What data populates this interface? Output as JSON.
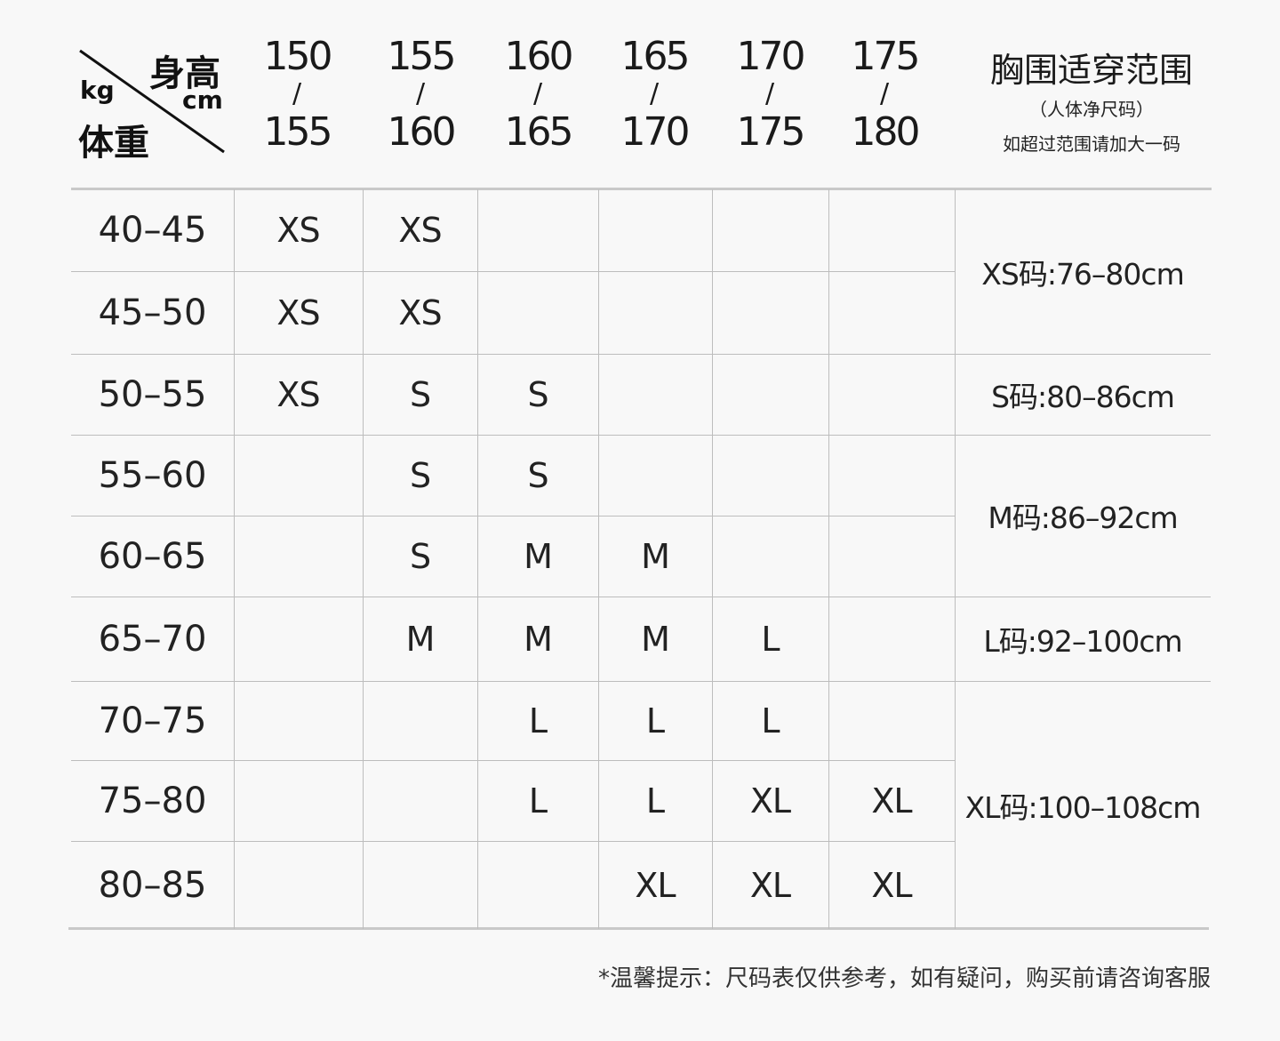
{
  "header": {
    "height_label": "身高",
    "height_unit": "cm",
    "weight_unit": "kg",
    "weight_label": "体重",
    "height_ranges": [
      {
        "from": "150",
        "sep": "/",
        "to": "155"
      },
      {
        "from": "155",
        "sep": "/",
        "to": "160"
      },
      {
        "from": "160",
        "sep": "/",
        "to": "165"
      },
      {
        "from": "165",
        "sep": "/",
        "to": "170"
      },
      {
        "from": "170",
        "sep": "/",
        "to": "175"
      },
      {
        "from": "175",
        "sep": "/",
        "to": "180"
      }
    ],
    "chest_title": "胸围适穿范围",
    "chest_sub": "（人体净尺码）",
    "chest_note": "如超过范围请加大一码"
  },
  "rows": [
    {
      "weight": "40–45",
      "sizes": [
        "XS",
        "XS",
        "",
        "",
        "",
        ""
      ]
    },
    {
      "weight": "45–50",
      "sizes": [
        "XS",
        "XS",
        "",
        "",
        "",
        ""
      ]
    },
    {
      "weight": "50–55",
      "sizes": [
        "XS",
        "S",
        "S",
        "",
        "",
        ""
      ]
    },
    {
      "weight": "55–60",
      "sizes": [
        "",
        "S",
        "S",
        "",
        "",
        ""
      ]
    },
    {
      "weight": "60–65",
      "sizes": [
        "",
        "S",
        "M",
        "M",
        "",
        ""
      ]
    },
    {
      "weight": "65–70",
      "sizes": [
        "",
        "M",
        "M",
        "M",
        "L",
        ""
      ]
    },
    {
      "weight": "70–75",
      "sizes": [
        "",
        "",
        "L",
        "L",
        "L",
        ""
      ]
    },
    {
      "weight": "75–80",
      "sizes": [
        "",
        "",
        "L",
        "L",
        "XL",
        "XL"
      ]
    },
    {
      "weight": "80–85",
      "sizes": [
        "",
        "",
        "",
        "XL",
        "XL",
        "XL"
      ]
    }
  ],
  "chest": [
    {
      "label": "XS码:76–80cm",
      "row_start": 0,
      "row_span": 2
    },
    {
      "label": "S码:80–86cm",
      "row_start": 2,
      "row_span": 1
    },
    {
      "label": "M码:86–92cm",
      "row_start": 3,
      "row_span": 2
    },
    {
      "label": "L码:92–100cm",
      "row_start": 5,
      "row_span": 1
    },
    {
      "label": "XL码:100–108cm",
      "row_start": 6,
      "row_span": 3
    }
  ],
  "footer_note": "*温馨提示：尺码表仅供参考，如有疑问，购买前请咨询客服"
}
